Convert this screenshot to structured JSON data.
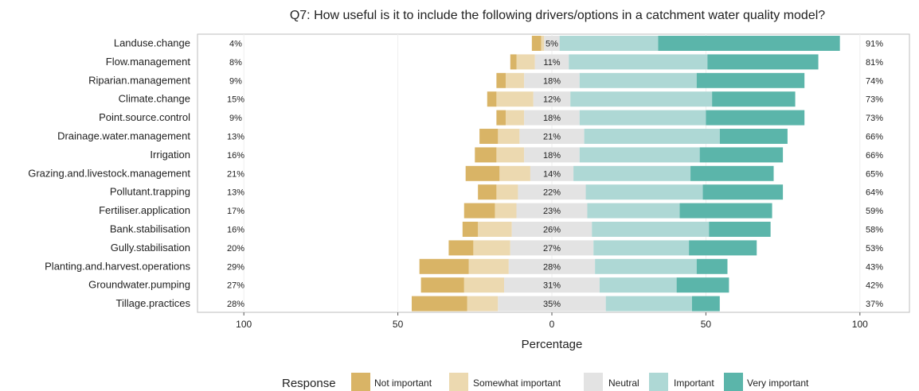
{
  "colors": {
    "not_important": "#d9b466",
    "somewhat_important": "#ecd9b0",
    "neutral": "#e3e3e3",
    "important": "#aed8d5",
    "very_important": "#5bb5aa",
    "grid": "#ffffff",
    "panel_border": "#bdbdbd"
  },
  "chart_data": {
    "type": "bar",
    "subtype": "diverging-stacked-likert",
    "title": "Q7: How useful is it to include the following drivers/options in a catchment water quality model?",
    "xlabel": "Percentage",
    "ylabel": "",
    "xlim": [
      -100,
      100
    ],
    "x_ticks": [
      -100,
      -50,
      0,
      50,
      100
    ],
    "x_tick_labels": [
      "100",
      "50",
      "0",
      "50",
      "100"
    ],
    "legend_title": "Response",
    "legend_position": "bottom",
    "series": [
      {
        "name": "Not important",
        "color_key": "not_important"
      },
      {
        "name": "Somewhat important",
        "color_key": "somewhat_important"
      },
      {
        "name": "Neutral",
        "color_key": "neutral"
      },
      {
        "name": "Important",
        "color_key": "important"
      },
      {
        "name": "Very important",
        "color_key": "very_important"
      }
    ],
    "categories": [
      "Landuse.change",
      "Flow.management",
      "Riparian.management",
      "Climate.change",
      "Point.source.control",
      "Drainage.water.management",
      "Irrigation",
      "Grazing.and.livestock.management",
      "Pollutant.trapping",
      "Fertiliser.application",
      "Bank.stabilisation",
      "Gully.stabilisation",
      "Planting.and.harvest.operations",
      "Groundwater.pumping",
      "Tillage.practices"
    ],
    "rows": [
      {
        "label": "Landuse.change",
        "values": [
          3,
          1,
          5,
          32,
          59
        ],
        "left_pct": "4%",
        "neutral_pct": "5%",
        "right_pct": "91%"
      },
      {
        "label": "Flow.management",
        "values": [
          2,
          6,
          11,
          45,
          36
        ],
        "left_pct": "8%",
        "neutral_pct": "11%",
        "right_pct": "81%"
      },
      {
        "label": "Riparian.management",
        "values": [
          3,
          6,
          18,
          38,
          35
        ],
        "left_pct": "9%",
        "neutral_pct": "18%",
        "right_pct": "74%"
      },
      {
        "label": "Climate.change",
        "values": [
          3,
          12,
          12,
          46,
          27
        ],
        "left_pct": "15%",
        "neutral_pct": "12%",
        "right_pct": "73%"
      },
      {
        "label": "Point.source.control",
        "values": [
          3,
          6,
          18,
          41,
          32
        ],
        "left_pct": "9%",
        "neutral_pct": "18%",
        "right_pct": "73%"
      },
      {
        "label": "Drainage.water.management",
        "values": [
          6,
          7,
          21,
          44,
          22
        ],
        "left_pct": "13%",
        "neutral_pct": "21%",
        "right_pct": "66%"
      },
      {
        "label": "Irrigation",
        "values": [
          7,
          9,
          18,
          39,
          27
        ],
        "left_pct": "16%",
        "neutral_pct": "18%",
        "right_pct": "66%"
      },
      {
        "label": "Grazing.and.livestock.management",
        "values": [
          11,
          10,
          14,
          38,
          27
        ],
        "left_pct": "21%",
        "neutral_pct": "14%",
        "right_pct": "65%"
      },
      {
        "label": "Pollutant.trapping",
        "values": [
          6,
          7,
          22,
          38,
          26
        ],
        "left_pct": "13%",
        "neutral_pct": "22%",
        "right_pct": "64%"
      },
      {
        "label": "Fertiliser.application",
        "values": [
          10,
          7,
          23,
          30,
          30
        ],
        "left_pct": "17%",
        "neutral_pct": "23%",
        "right_pct": "59%"
      },
      {
        "label": "Bank.stabilisation",
        "values": [
          5,
          11,
          26,
          38,
          20
        ],
        "left_pct": "16%",
        "neutral_pct": "26%",
        "right_pct": "58%"
      },
      {
        "label": "Gully.stabilisation",
        "values": [
          8,
          12,
          27,
          31,
          22
        ],
        "left_pct": "20%",
        "neutral_pct": "27%",
        "right_pct": "53%"
      },
      {
        "label": "Planting.and.harvest.operations",
        "values": [
          16,
          13,
          28,
          33,
          10
        ],
        "left_pct": "29%",
        "neutral_pct": "28%",
        "right_pct": "43%"
      },
      {
        "label": "Groundwater.pumping",
        "values": [
          14,
          13,
          31,
          25,
          17
        ],
        "left_pct": "27%",
        "neutral_pct": "31%",
        "right_pct": "42%"
      },
      {
        "label": "Tillage.practices",
        "values": [
          18,
          10,
          35,
          28,
          9
        ],
        "left_pct": "28%",
        "neutral_pct": "35%",
        "right_pct": "37%"
      }
    ]
  }
}
